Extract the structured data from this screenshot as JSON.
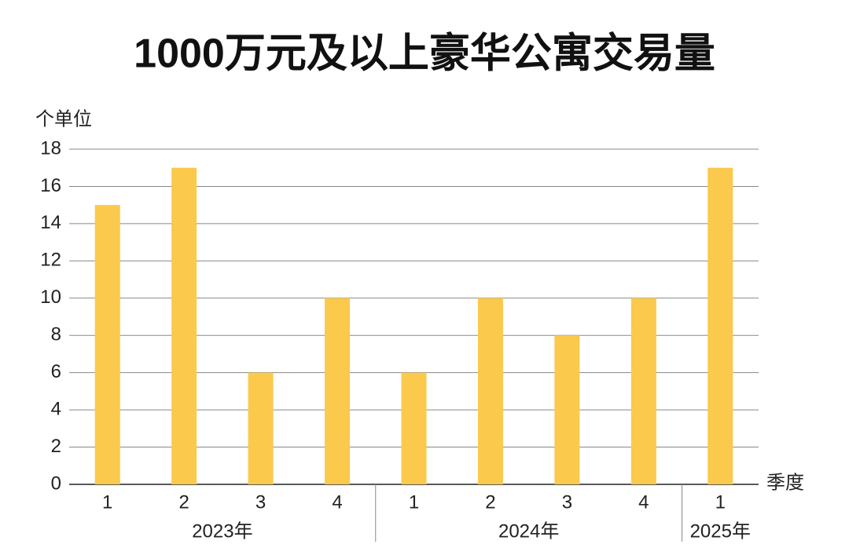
{
  "chart_data": {
    "type": "bar",
    "title": "1000万元及以上豪华公寓交易量",
    "y_label": "个单位",
    "x_label": "季度",
    "groups": [
      {
        "name": "2023年",
        "categories": [
          "1",
          "2",
          "3",
          "4"
        ]
      },
      {
        "name": "2024年",
        "categories": [
          "1",
          "2",
          "3",
          "4"
        ]
      },
      {
        "name": "2025年",
        "categories": [
          "1"
        ]
      }
    ],
    "values": [
      15,
      17,
      6,
      10,
      6,
      10,
      8,
      10,
      17
    ],
    "color": "#fbc94b",
    "ylim": [
      0,
      18
    ],
    "yticks": [
      0,
      2,
      4,
      6,
      8,
      10,
      12,
      14,
      16,
      18
    ],
    "grid": true
  }
}
